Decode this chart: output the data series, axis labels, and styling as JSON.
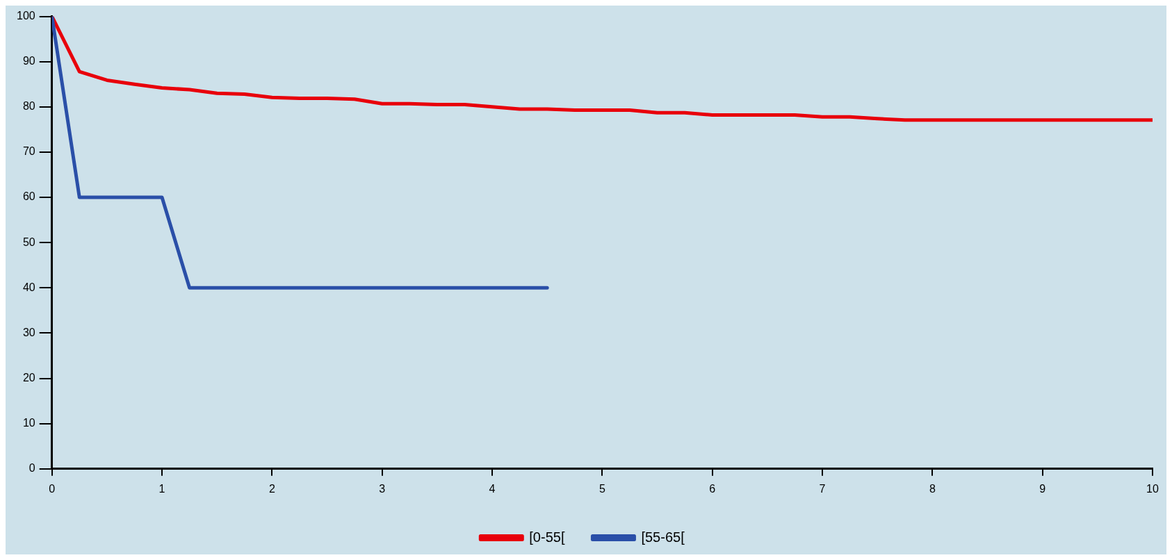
{
  "chart_data": {
    "type": "line",
    "xlim": [
      0,
      10
    ],
    "xticks": [
      0,
      1,
      2,
      3,
      4,
      5,
      6,
      7,
      8,
      9,
      10
    ],
    "ylim": [
      0,
      100
    ],
    "yticks": [
      0,
      10,
      20,
      30,
      40,
      50,
      60,
      70,
      80,
      90,
      100
    ],
    "grid": false,
    "legend": "bottom",
    "marker": "none",
    "line_style": "solid",
    "series": [
      {
        "name": "[0-55[",
        "color": "#e8000b",
        "x": [
          0,
          0.25,
          0.5,
          0.75,
          1,
          1.25,
          1.5,
          1.75,
          2,
          2.25,
          2.5,
          2.75,
          3,
          3.25,
          3.5,
          3.75,
          4,
          4.25,
          4.5,
          4.75,
          5,
          5.25,
          5.5,
          5.75,
          6,
          6.25,
          6.5,
          6.75,
          7,
          7.25,
          7.5,
          7.75,
          8,
          9,
          10
        ],
        "values": [
          100,
          87.8,
          85.9,
          85,
          84.2,
          83.8,
          83,
          82.8,
          82.1,
          81.9,
          81.9,
          81.7,
          80.7,
          80.7,
          80.5,
          80.5,
          80,
          79.5,
          79.5,
          79.3,
          79.3,
          79.3,
          78.7,
          78.7,
          78.2,
          78.2,
          78.2,
          78.2,
          77.8,
          77.8,
          77.4,
          77.1,
          77.1,
          77.1,
          77.1
        ]
      },
      {
        "name": "[55-65[",
        "color": "#2a4fa8",
        "x": [
          0,
          0.25,
          1,
          1.25,
          4.5
        ],
        "values": [
          100,
          60,
          60,
          40,
          40
        ]
      }
    ]
  }
}
